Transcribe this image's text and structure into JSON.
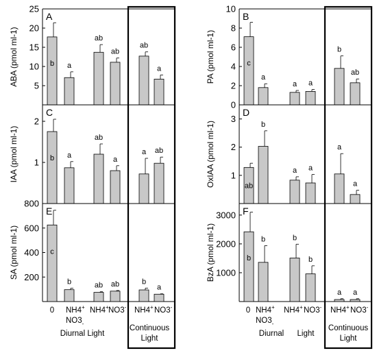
{
  "x_labels": {
    "zero": "0",
    "mix_nh4": "NH4",
    "mix_sup": "+",
    "mix_no3": "NO3",
    "mix_sub": "-",
    "nh4": "NH4",
    "nh4_sup": "+",
    "no3": "NO3",
    "no3_sup": "-"
  },
  "group_labels": {
    "left_diurnal": "Diurnal Light",
    "left_continuous_1": "Continuous",
    "left_continuous_2": "Light",
    "right_diurnal_1": "Diurnal",
    "right_diurnal_2": "Light",
    "right_continuous_1": "Continuous",
    "right_continuous_2": "Light"
  },
  "chart_data": [
    {
      "panel": "A",
      "type": "bar",
      "ylabel": "ABA (pmol ml-1)",
      "ylim": [
        0,
        25
      ],
      "yticks": [
        "5",
        "10",
        "15",
        "20",
        "25"
      ],
      "categories": [
        "0",
        "NH4+ NO3-",
        "NH4+",
        "NO3-",
        "NH4+",
        "NO3-"
      ],
      "values": [
        17.7,
        7.1,
        13.7,
        11.1,
        12.7,
        6.7
      ],
      "errors": [
        3.7,
        1.5,
        2.0,
        1.1,
        1.1,
        1.1
      ],
      "letters": [
        "b",
        "a",
        "ab",
        "ab",
        "ab",
        "a"
      ]
    },
    {
      "panel": "B",
      "type": "bar",
      "ylabel": "PA (pmol ml-1)",
      "ylim": [
        0,
        10
      ],
      "yticks": [
        "0",
        "2",
        "4",
        "6",
        "8",
        "10"
      ],
      "categories": [
        "0",
        "NH4+ NO3-",
        "NH4+",
        "NO3-",
        "NH4+",
        "NO3-"
      ],
      "values": [
        7.1,
        1.8,
        1.3,
        1.4,
        3.8,
        2.3
      ],
      "errors": [
        1.5,
        0.4,
        0.2,
        0.2,
        1.3,
        0.4
      ],
      "letters": [
        "c",
        "a",
        "a",
        "a",
        "b",
        "ab"
      ]
    },
    {
      "panel": "C",
      "type": "bar",
      "ylabel": "IAA (pmol ml-1)",
      "ylim": [
        0,
        2.4
      ],
      "yticks": [
        "1",
        "2"
      ],
      "categories": [
        "0",
        "NH4+ NO3-",
        "NH4+",
        "NO3-",
        "NH4+",
        "NO3-"
      ],
      "values": [
        1.75,
        0.87,
        1.2,
        0.8,
        0.72,
        0.98
      ],
      "errors": [
        0.3,
        0.15,
        0.25,
        0.12,
        0.38,
        0.15
      ],
      "letters": [
        "b",
        "a",
        "ab",
        "a",
        "a",
        "ab"
      ]
    },
    {
      "panel": "D",
      "type": "bar",
      "ylabel": "OxIAA (pmol ml-1)",
      "ylim": [
        0,
        3.5
      ],
      "yticks": [
        "1",
        "2",
        "3"
      ],
      "categories": [
        "0",
        "NH4+ NO3-",
        "NH4+",
        "NO3-",
        "NH4+",
        "NO3-"
      ],
      "values": [
        1.28,
        2.03,
        0.83,
        0.73,
        1.05,
        0.32
      ],
      "errors": [
        0.15,
        0.55,
        0.12,
        0.3,
        0.72,
        0.15
      ],
      "letters": [
        "ab",
        "b",
        "a",
        "a",
        "a",
        "a"
      ]
    },
    {
      "panel": "E",
      "type": "bar",
      "ylabel": "SA (pmol ml-1)",
      "ylim": [
        0,
        800
      ],
      "yticks": [
        "200",
        "400",
        "600",
        "800"
      ],
      "categories": [
        "0",
        "NH4+ NO3-",
        "NH4+",
        "NO3-",
        "NH4+",
        "NO3-"
      ],
      "values": [
        625,
        97,
        75,
        85,
        95,
        60
      ],
      "errors": [
        120,
        12,
        5,
        5,
        15,
        3
      ],
      "letters": [
        "c",
        "b",
        "ab",
        "ab",
        "b",
        "a"
      ]
    },
    {
      "panel": "F",
      "type": "bar",
      "ylabel": "BzA (pmol ml-1)",
      "ylim": [
        0,
        3400
      ],
      "yticks": [
        "1000",
        "2000",
        "3000"
      ],
      "categories": [
        "0",
        "NH4+ NO3-",
        "NH4+",
        "NO3-",
        "NH4+",
        "NO3-"
      ],
      "values": [
        2420,
        1360,
        1510,
        960,
        70,
        70
      ],
      "errors": [
        680,
        580,
        480,
        280,
        30,
        30
      ],
      "letters": [
        "b",
        "b",
        "b",
        "b",
        "a",
        "a"
      ]
    }
  ]
}
